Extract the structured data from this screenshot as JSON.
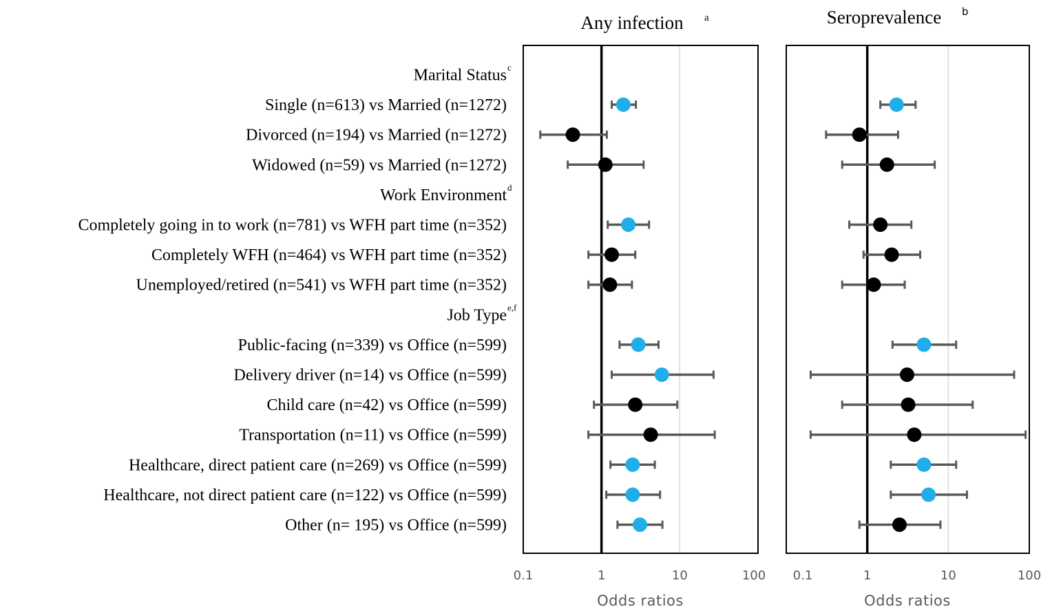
{
  "chart_data": {
    "type": "forest",
    "x_scale": "log",
    "xlim": [
      0.1,
      100
    ],
    "x_ticks": [
      "0.1",
      "1",
      "10",
      "100"
    ],
    "reference_line": 1,
    "grid": "vertical at 10",
    "colors": {
      "significant": "#1FAEE8",
      "not_significant": "#000000",
      "whisker": "#595959",
      "grid": "#D9D9D9"
    },
    "rows": [
      {
        "label": "Marital Status",
        "sup": "c",
        "type": "header"
      },
      {
        "label": "Single (n=613) vs Married (n=1272)",
        "type": "item"
      },
      {
        "label": "Divorced (n=194) vs Married (n=1272)",
        "type": "item"
      },
      {
        "label": "Widowed (n=59) vs Married (n=1272)",
        "type": "item"
      },
      {
        "label": "Work Environment",
        "sup": "d",
        "type": "header"
      },
      {
        "label": "Completely going in to work (n=781) vs WFH part time (n=352)",
        "type": "item"
      },
      {
        "label": "Completely WFH (n=464) vs WFH part time (n=352)",
        "type": "item"
      },
      {
        "label": "Unemployed/retired (n=541) vs WFH part time (n=352)",
        "type": "item"
      },
      {
        "label": "Job Type",
        "sup": "e,f",
        "type": "header"
      },
      {
        "label": "Public-facing (n=339) vs Office (n=599)",
        "type": "item"
      },
      {
        "label": "Delivery driver (n=14) vs Office (n=599)",
        "type": "item"
      },
      {
        "label": "Child care (n=42) vs Office (n=599)",
        "type": "item"
      },
      {
        "label": "Transportation (n=11) vs Office (n=599)",
        "type": "item"
      },
      {
        "label": "Healthcare, direct patient care (n=269) vs Office (n=599)",
        "type": "item"
      },
      {
        "label": "Healthcare, not direct patient care (n=122) vs Office (n=599)",
        "type": "item"
      },
      {
        "label": "Other (n= 195) vs Office (n=599)",
        "type": "item"
      }
    ],
    "panels": [
      {
        "title": "Any infection",
        "title_sup": "a",
        "xlabel": "Odds ratios",
        "points": [
          {
            "row": 1,
            "or": 1.9,
            "lo": 1.35,
            "hi": 2.75,
            "significant": true
          },
          {
            "row": 2,
            "or": 0.43,
            "lo": 0.165,
            "hi": 1.17,
            "significant": false
          },
          {
            "row": 3,
            "or": 1.12,
            "lo": 0.37,
            "hi": 3.45,
            "significant": false
          },
          {
            "row": 5,
            "or": 2.2,
            "lo": 1.2,
            "hi": 4.05,
            "significant": true
          },
          {
            "row": 6,
            "or": 1.35,
            "lo": 0.68,
            "hi": 2.7,
            "significant": false
          },
          {
            "row": 7,
            "or": 1.28,
            "lo": 0.68,
            "hi": 2.45,
            "significant": false
          },
          {
            "row": 9,
            "or": 2.95,
            "lo": 1.7,
            "hi": 5.35,
            "significant": true
          },
          {
            "row": 10,
            "or": 5.9,
            "lo": 1.35,
            "hi": 27,
            "significant": true
          },
          {
            "row": 11,
            "or": 2.7,
            "lo": 0.8,
            "hi": 9.3,
            "significant": false
          },
          {
            "row": 12,
            "or": 4.25,
            "lo": 0.68,
            "hi": 28,
            "significant": false
          },
          {
            "row": 13,
            "or": 2.5,
            "lo": 1.3,
            "hi": 4.8,
            "significant": true
          },
          {
            "row": 14,
            "or": 2.5,
            "lo": 1.15,
            "hi": 5.6,
            "significant": true
          },
          {
            "row": 15,
            "or": 3.1,
            "lo": 1.6,
            "hi": 6.0,
            "significant": true
          }
        ]
      },
      {
        "title": "Seroprevalence",
        "title_sup": "b",
        "xlabel": "Odds ratios",
        "points": [
          {
            "row": 1,
            "or": 2.3,
            "lo": 1.45,
            "hi": 3.95,
            "significant": true
          },
          {
            "row": 2,
            "or": 0.8,
            "lo": 0.31,
            "hi": 2.4,
            "significant": false
          },
          {
            "row": 3,
            "or": 1.75,
            "lo": 0.49,
            "hi": 6.8,
            "significant": false
          },
          {
            "row": 5,
            "or": 1.45,
            "lo": 0.6,
            "hi": 3.5,
            "significant": false
          },
          {
            "row": 6,
            "or": 2.0,
            "lo": 0.9,
            "hi": 4.5,
            "significant": false
          },
          {
            "row": 7,
            "or": 1.2,
            "lo": 0.49,
            "hi": 2.9,
            "significant": false
          },
          {
            "row": 9,
            "or": 5.0,
            "lo": 2.05,
            "hi": 12.5,
            "significant": true
          },
          {
            "row": 10,
            "or": 3.1,
            "lo": 0.2,
            "hi": 65,
            "significant": false
          },
          {
            "row": 11,
            "or": 3.2,
            "lo": 0.49,
            "hi": 20,
            "significant": false
          },
          {
            "row": 12,
            "or": 3.8,
            "lo": 0.2,
            "hi": 90,
            "significant": false
          },
          {
            "row": 13,
            "or": 5.0,
            "lo": 1.95,
            "hi": 12.5,
            "significant": true
          },
          {
            "row": 14,
            "or": 5.7,
            "lo": 1.95,
            "hi": 17,
            "significant": true
          },
          {
            "row": 15,
            "or": 2.5,
            "lo": 0.8,
            "hi": 8.0,
            "significant": false
          }
        ]
      }
    ]
  }
}
